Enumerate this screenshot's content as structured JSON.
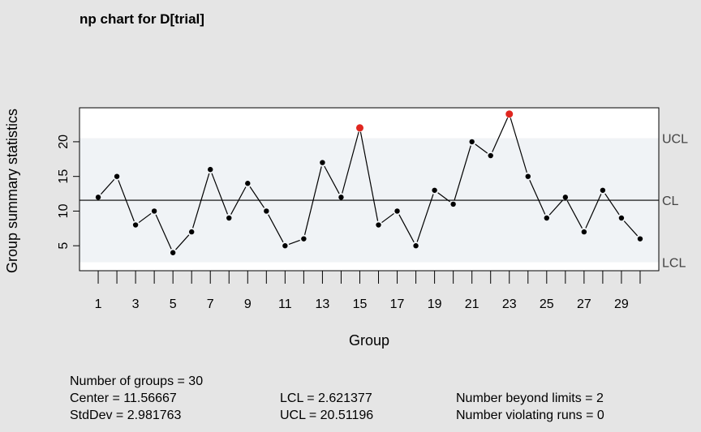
{
  "chart_data": {
    "type": "line",
    "title": "np chart for D[trial]",
    "xlabel": "Group",
    "ylabel": "Group summary statistics",
    "x": [
      1,
      2,
      3,
      4,
      5,
      6,
      7,
      8,
      9,
      10,
      11,
      12,
      13,
      14,
      15,
      16,
      17,
      18,
      19,
      20,
      21,
      22,
      23,
      24,
      25,
      26,
      27,
      28,
      29,
      30
    ],
    "series": [
      {
        "values": [
          12,
          15,
          8,
          10,
          4,
          7,
          16,
          9,
          14,
          10,
          5,
          6,
          17,
          12,
          22,
          8,
          10,
          5,
          13,
          11,
          20,
          18,
          24,
          15,
          9,
          12,
          7,
          13,
          9,
          6
        ]
      }
    ],
    "xticks": [
      "1",
      "3",
      "5",
      "7",
      "9",
      "11",
      "13",
      "15",
      "17",
      "19",
      "21",
      "23",
      "25",
      "27",
      "29"
    ],
    "yticks": [
      "5",
      "10",
      "15",
      "20"
    ],
    "xlim": [
      0,
      31
    ],
    "ylim": [
      1.4,
      24.9
    ],
    "center": 11.56667,
    "lcl": 2.621377,
    "ucl": 20.51196,
    "limit_labels": {
      "ucl": "UCL",
      "cl": "CL",
      "lcl": "LCL"
    },
    "colors": {
      "point": "#000000",
      "out_of_control": "#e0261f",
      "in_control_band": "#f0f3f6",
      "outer_band": "#ffffff",
      "background": "#e5e5e5"
    }
  },
  "stats": {
    "groups": "Number of groups = 30",
    "center": "Center = 11.56667",
    "stddev": "StdDev = 2.981763",
    "lcl": "LCL = 2.621377",
    "ucl": "UCL = 20.51196",
    "beyond": "Number beyond limits = 2",
    "violating": "Number violating runs = 0"
  }
}
